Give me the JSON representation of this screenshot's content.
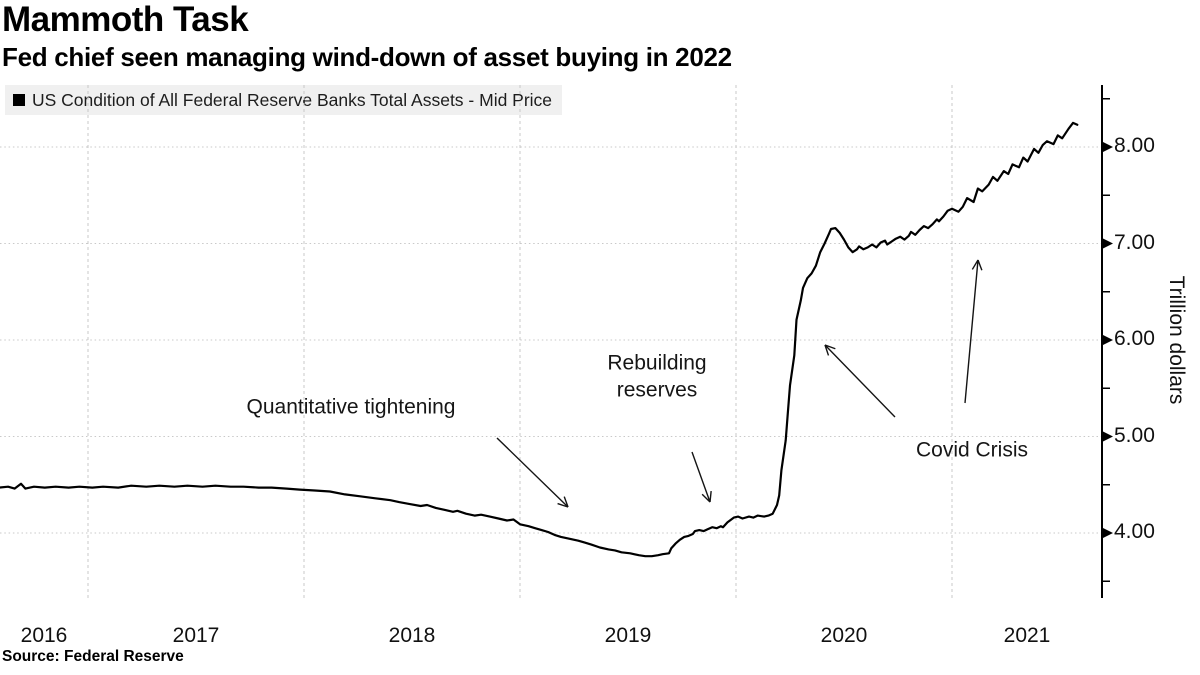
{
  "header": {
    "title": "Mammoth Task",
    "subtitle": "Fed chief seen managing wind-down of asset buying in 2022"
  },
  "legend": {
    "label": "US Condition of All Federal Reserve Banks Total Assets - Mid Price",
    "marker_color": "#000000"
  },
  "annotations": {
    "quantitative_tightening": "Quantitative tightening",
    "rebuilding_reserves": "Rebuilding\nreserves",
    "covid_crisis": "Covid Crisis"
  },
  "source": {
    "text": "Source: Federal Reserve"
  },
  "colors": {
    "line": "#000000",
    "grid": "#c9c9c9",
    "legend_bg": "#efefef",
    "background": "#ffffff",
    "text": "#000000"
  },
  "chart_data": {
    "type": "line",
    "title": "Mammoth Task",
    "subtitle": "Fed chief seen managing wind-down of asset buying in 2022",
    "xlabel": "",
    "ylabel": "Trillion dollars",
    "ylim": [
      3.33,
      8.64
    ],
    "xlim": [
      2016.59,
      2021.69
    ],
    "grid": true,
    "legend_position": "top-left",
    "x_axis": {
      "year_labels": [
        "2016",
        "2017",
        "2018",
        "2019",
        "2020",
        "2021"
      ],
      "label_years": [
        2016,
        2017,
        2018,
        2019,
        2020,
        2021
      ],
      "gridline_years": [
        2017,
        2018,
        2019,
        2020,
        2021
      ]
    },
    "y_axis": {
      "side": "right",
      "tick_labels": [
        "8.00",
        "7.00",
        "6.00",
        "5.00",
        "4.00"
      ],
      "tick_values": [
        8,
        7,
        6,
        5,
        4
      ],
      "minor_tick_values": [
        8.5,
        7.5,
        6.5,
        5.5,
        4.5,
        3.5
      ]
    },
    "series": [
      {
        "name": "US Condition of All Federal Reserve Banks Total Assets - Mid Price",
        "color": "#000000",
        "points": [
          [
            2016.59,
            4.47
          ],
          [
            2016.63,
            4.48
          ],
          [
            2016.66,
            4.46
          ],
          [
            2016.69,
            4.51
          ],
          [
            2016.71,
            4.46
          ],
          [
            2016.75,
            4.48
          ],
          [
            2016.8,
            4.47
          ],
          [
            2016.85,
            4.48
          ],
          [
            2016.91,
            4.47
          ],
          [
            2016.96,
            4.48
          ],
          [
            2017.02,
            4.47
          ],
          [
            2017.07,
            4.48
          ],
          [
            2017.14,
            4.47
          ],
          [
            2017.2,
            4.49
          ],
          [
            2017.27,
            4.48
          ],
          [
            2017.33,
            4.49
          ],
          [
            2017.4,
            4.48
          ],
          [
            2017.46,
            4.49
          ],
          [
            2017.53,
            4.48
          ],
          [
            2017.59,
            4.49
          ],
          [
            2017.66,
            4.48
          ],
          [
            2017.72,
            4.48
          ],
          [
            2017.79,
            4.47
          ],
          [
            2017.85,
            4.47
          ],
          [
            2017.92,
            4.46
          ],
          [
            2017.98,
            4.45
          ],
          [
            2018.05,
            4.44
          ],
          [
            2018.12,
            4.43
          ],
          [
            2018.19,
            4.4
          ],
          [
            2018.26,
            4.38
          ],
          [
            2018.33,
            4.36
          ],
          [
            2018.4,
            4.34
          ],
          [
            2018.44,
            4.32
          ],
          [
            2018.49,
            4.3
          ],
          [
            2018.54,
            4.28
          ],
          [
            2018.57,
            4.29
          ],
          [
            2018.61,
            4.26
          ],
          [
            2018.65,
            4.24
          ],
          [
            2018.69,
            4.22
          ],
          [
            2018.71,
            4.23
          ],
          [
            2018.75,
            4.2
          ],
          [
            2018.79,
            4.18
          ],
          [
            2018.82,
            4.19
          ],
          [
            2018.86,
            4.17
          ],
          [
            2018.9,
            4.15
          ],
          [
            2018.94,
            4.13
          ],
          [
            2018.97,
            4.14
          ],
          [
            2019.0,
            4.09
          ],
          [
            2019.04,
            4.07
          ],
          [
            2019.07,
            4.05
          ],
          [
            2019.1,
            4.03
          ],
          [
            2019.13,
            4.01
          ],
          [
            2019.16,
            3.98
          ],
          [
            2019.19,
            3.96
          ],
          [
            2019.23,
            3.94
          ],
          [
            2019.27,
            3.92
          ],
          [
            2019.3,
            3.9
          ],
          [
            2019.33,
            3.88
          ],
          [
            2019.37,
            3.85
          ],
          [
            2019.41,
            3.83
          ],
          [
            2019.44,
            3.82
          ],
          [
            2019.47,
            3.8
          ],
          [
            2019.51,
            3.79
          ],
          [
            2019.55,
            3.77
          ],
          [
            2019.58,
            3.76
          ],
          [
            2019.61,
            3.76
          ],
          [
            2019.64,
            3.77
          ],
          [
            2019.66,
            3.78
          ],
          [
            2019.69,
            3.79
          ],
          [
            2019.7,
            3.84
          ],
          [
            2019.72,
            3.89
          ],
          [
            2019.74,
            3.93
          ],
          [
            2019.76,
            3.96
          ],
          [
            2019.78,
            3.97
          ],
          [
            2019.8,
            3.99
          ],
          [
            2019.81,
            4.02
          ],
          [
            2019.83,
            4.03
          ],
          [
            2019.85,
            4.02
          ],
          [
            2019.87,
            4.04
          ],
          [
            2019.89,
            4.06
          ],
          [
            2019.91,
            4.05
          ],
          [
            2019.93,
            4.07
          ],
          [
            2019.94,
            4.06
          ],
          [
            2019.96,
            4.11
          ],
          [
            2019.99,
            4.16
          ],
          [
            2020.01,
            4.17
          ],
          [
            2020.03,
            4.15
          ],
          [
            2020.06,
            4.17
          ],
          [
            2020.08,
            4.16
          ],
          [
            2020.1,
            4.18
          ],
          [
            2020.13,
            4.17
          ],
          [
            2020.15,
            4.18
          ],
          [
            2020.17,
            4.2
          ],
          [
            2020.19,
            4.29
          ],
          [
            2020.2,
            4.39
          ],
          [
            2020.21,
            4.65
          ],
          [
            2020.23,
            4.96
          ],
          [
            2020.24,
            5.24
          ],
          [
            2020.25,
            5.53
          ],
          [
            2020.27,
            5.84
          ],
          [
            2020.28,
            6.21
          ],
          [
            2020.3,
            6.41
          ],
          [
            2020.31,
            6.54
          ],
          [
            2020.33,
            6.64
          ],
          [
            2020.35,
            6.69
          ],
          [
            2020.37,
            6.77
          ],
          [
            2020.39,
            6.91
          ],
          [
            2020.41,
            7.0
          ],
          [
            2020.43,
            7.1
          ],
          [
            2020.44,
            7.15
          ],
          [
            2020.46,
            7.16
          ],
          [
            2020.48,
            7.11
          ],
          [
            2020.5,
            7.04
          ],
          [
            2020.52,
            6.96
          ],
          [
            2020.54,
            6.91
          ],
          [
            2020.56,
            6.94
          ],
          [
            2020.57,
            6.97
          ],
          [
            2020.59,
            6.94
          ],
          [
            2020.61,
            6.96
          ],
          [
            2020.63,
            6.99
          ],
          [
            2020.65,
            6.96
          ],
          [
            2020.67,
            7.01
          ],
          [
            2020.69,
            7.03
          ],
          [
            2020.7,
            6.99
          ],
          [
            2020.72,
            7.02
          ],
          [
            2020.74,
            7.05
          ],
          [
            2020.76,
            7.07
          ],
          [
            2020.78,
            7.04
          ],
          [
            2020.8,
            7.08
          ],
          [
            2020.81,
            7.12
          ],
          [
            2020.83,
            7.09
          ],
          [
            2020.85,
            7.14
          ],
          [
            2020.87,
            7.18
          ],
          [
            2020.89,
            7.16
          ],
          [
            2020.91,
            7.2
          ],
          [
            2020.93,
            7.25
          ],
          [
            2020.94,
            7.23
          ],
          [
            2020.96,
            7.28
          ],
          [
            2020.98,
            7.34
          ],
          [
            2021.0,
            7.36
          ],
          [
            2021.03,
            7.33
          ],
          [
            2021.05,
            7.38
          ],
          [
            2021.07,
            7.47
          ],
          [
            2021.1,
            7.43
          ],
          [
            2021.12,
            7.57
          ],
          [
            2021.14,
            7.54
          ],
          [
            2021.17,
            7.61
          ],
          [
            2021.19,
            7.69
          ],
          [
            2021.21,
            7.65
          ],
          [
            2021.24,
            7.75
          ],
          [
            2021.26,
            7.72
          ],
          [
            2021.28,
            7.82
          ],
          [
            2021.31,
            7.79
          ],
          [
            2021.33,
            7.89
          ],
          [
            2021.35,
            7.85
          ],
          [
            2021.38,
            7.98
          ],
          [
            2021.4,
            7.94
          ],
          [
            2021.42,
            8.02
          ],
          [
            2021.44,
            8.06
          ],
          [
            2021.47,
            8.03
          ],
          [
            2021.49,
            8.12
          ],
          [
            2021.51,
            8.09
          ],
          [
            2021.54,
            8.19
          ],
          [
            2021.56,
            8.25
          ],
          [
            2021.58,
            8.23
          ]
        ]
      }
    ]
  }
}
